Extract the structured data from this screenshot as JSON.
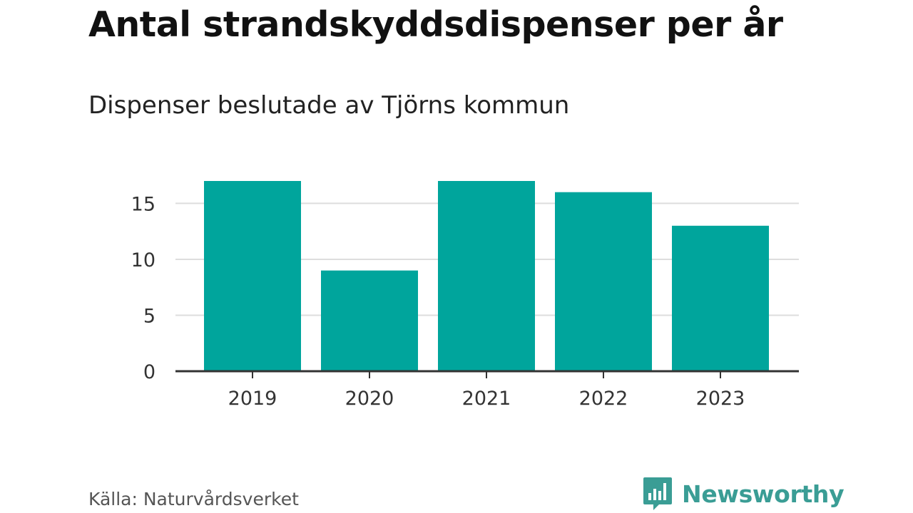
{
  "title": "Antal strandskyddsdispenser per år",
  "subtitle": "Dispenser beslutade av Tjörns kommun",
  "source": "Källa: Naturvårdsverket",
  "brand": {
    "name": "Newsworthy",
    "logo_icon": "speech-bubble-bar-chart-icon"
  },
  "colors": {
    "bar": "#00a59c",
    "grid": "#dddddd",
    "axis": "#333333",
    "brand": "#3a9d95"
  },
  "chart_data": {
    "type": "bar",
    "title": "Antal strandskyddsdispenser per år",
    "subtitle": "Dispenser beslutade av Tjörns kommun",
    "categories": [
      "2019",
      "2020",
      "2021",
      "2022",
      "2023"
    ],
    "values": [
      17,
      9,
      17,
      16,
      13
    ],
    "xlabel": "",
    "ylabel": "",
    "ylim": [
      0,
      17
    ],
    "yticks": [
      0,
      5,
      10,
      15
    ],
    "grid": true,
    "legend": "none"
  }
}
